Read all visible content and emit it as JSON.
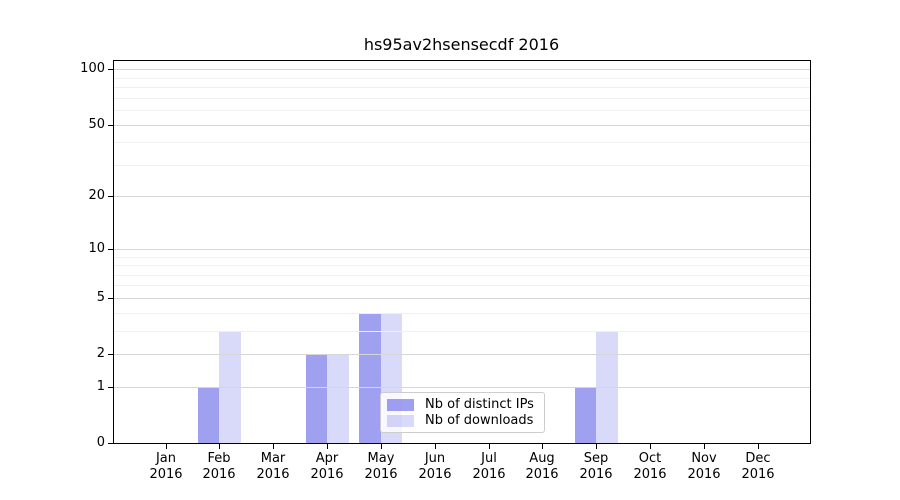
{
  "chart_data": {
    "type": "bar",
    "title": "hs95av2hsensecdf 2016",
    "categories": [
      {
        "month": "Jan",
        "year": "2016"
      },
      {
        "month": "Feb",
        "year": "2016"
      },
      {
        "month": "Mar",
        "year": "2016"
      },
      {
        "month": "Apr",
        "year": "2016"
      },
      {
        "month": "May",
        "year": "2016"
      },
      {
        "month": "Jun",
        "year": "2016"
      },
      {
        "month": "Jul",
        "year": "2016"
      },
      {
        "month": "Aug",
        "year": "2016"
      },
      {
        "month": "Sep",
        "year": "2016"
      },
      {
        "month": "Oct",
        "year": "2016"
      },
      {
        "month": "Nov",
        "year": "2016"
      },
      {
        "month": "Dec",
        "year": "2016"
      }
    ],
    "series": [
      {
        "name": "Nb of distinct IPs",
        "color": "rgba(80,80,230,0.54)",
        "values": [
          0,
          1,
          0,
          2,
          4,
          0,
          0,
          0,
          1,
          0,
          0,
          0
        ]
      },
      {
        "name": "Nb of downloads",
        "color": "rgba(80,80,230,0.22)",
        "values": [
          0,
          3,
          0,
          2,
          4,
          0,
          0,
          0,
          3,
          0,
          0,
          0
        ]
      }
    ],
    "xlabel": "",
    "ylabel": "",
    "yscale": "log1p",
    "y_major_ticks": [
      0,
      1,
      2,
      5,
      10,
      20,
      50,
      100
    ],
    "y_minor_ticks": [
      3,
      4,
      6,
      7,
      8,
      9,
      30,
      40,
      60,
      70,
      80,
      90
    ],
    "ylim": [
      0,
      115
    ],
    "grid": true,
    "legend_position": "lower center"
  },
  "colors": {
    "grid_major": "#d6d6d6",
    "grid_minor": "#f0f0f0",
    "spine": "#000000",
    "text": "#000000",
    "background": "#ffffff",
    "legend_border": "#cccccc"
  }
}
